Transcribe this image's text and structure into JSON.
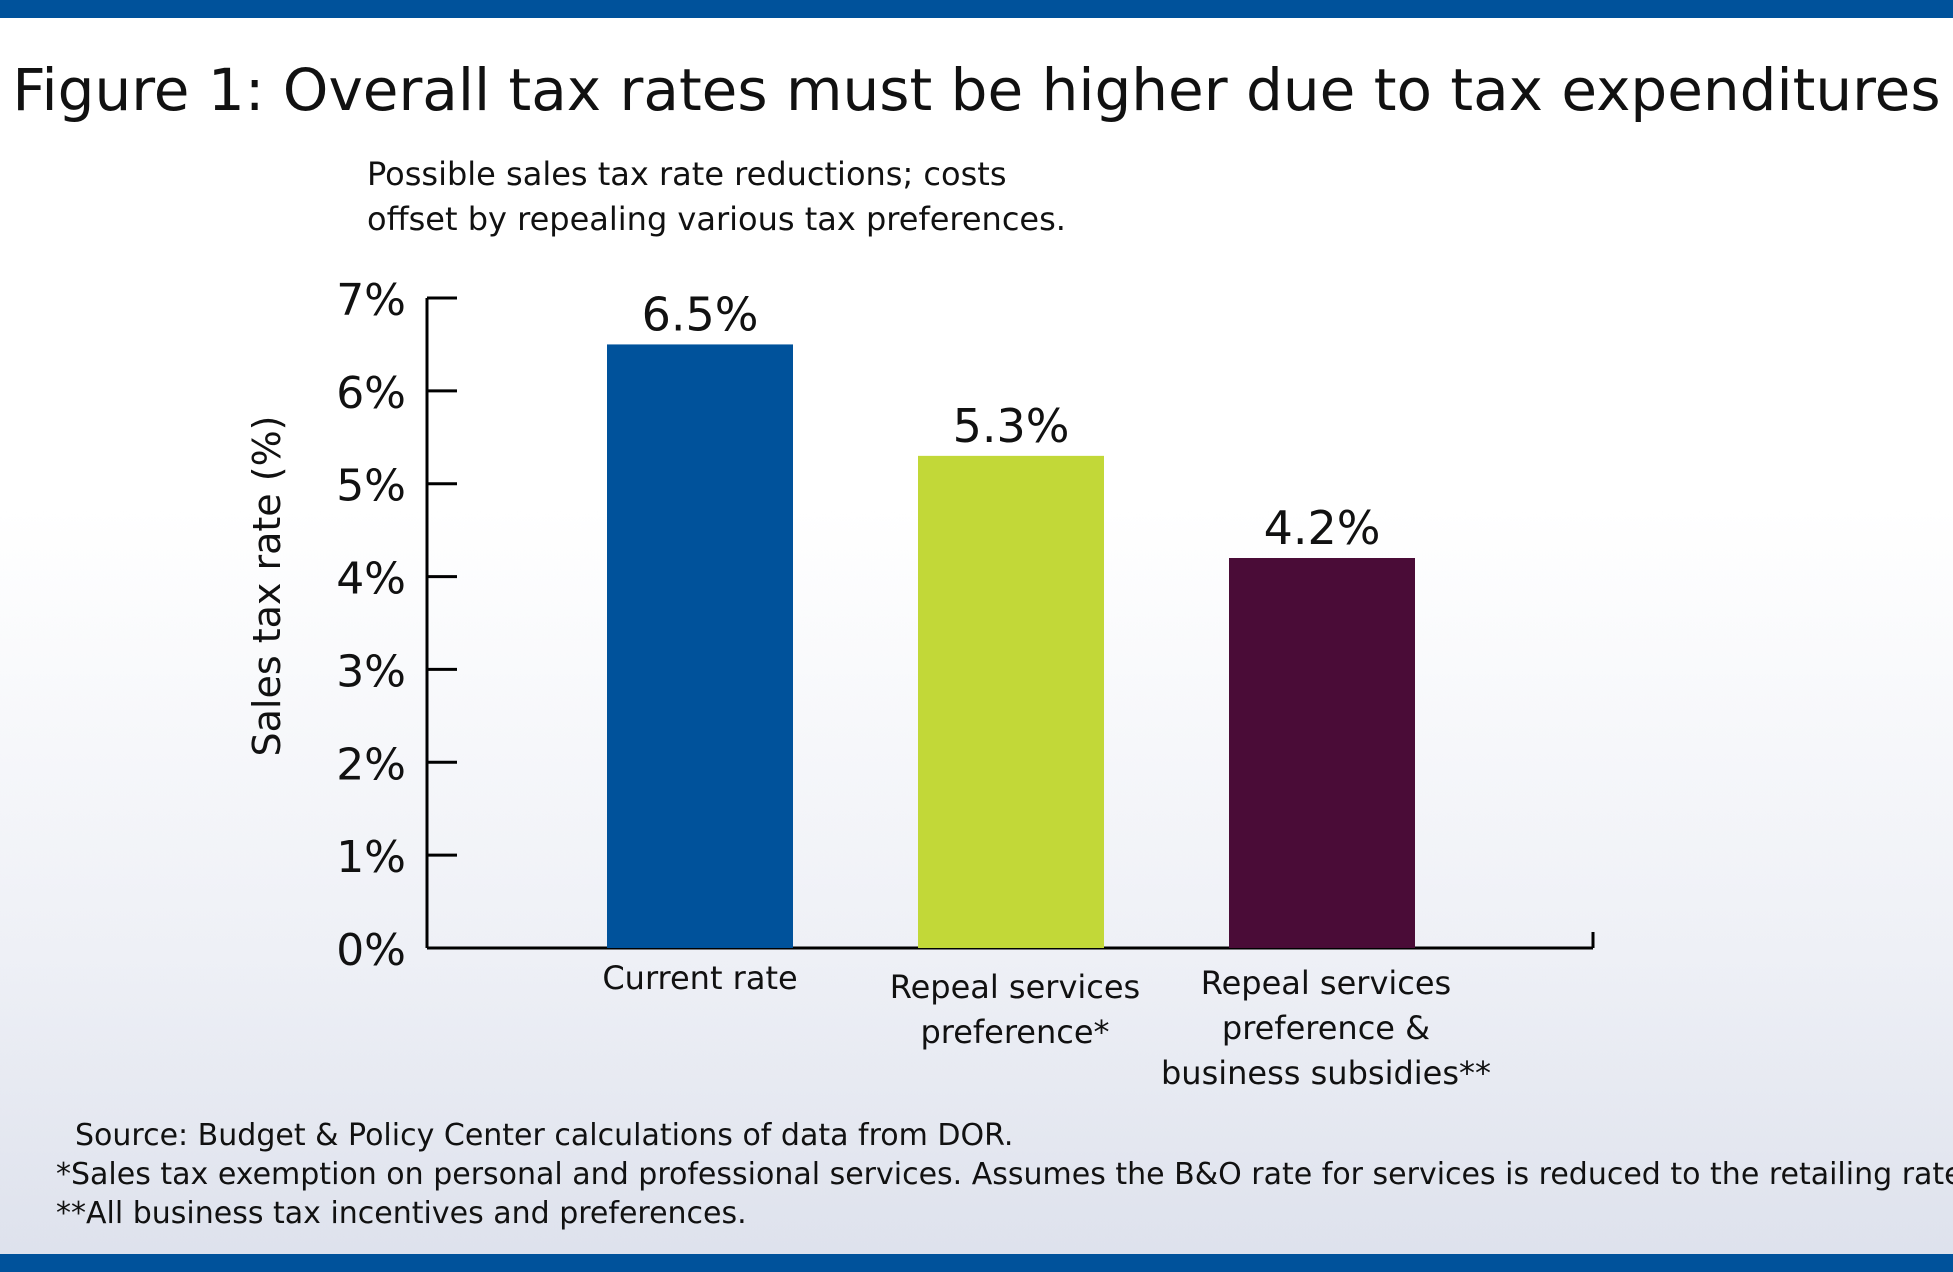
{
  "colors": {
    "accent_band": "#00529b",
    "bar_colors": [
      "#00529b",
      "#c2d838",
      "#4a0c37"
    ]
  },
  "title": "Figure 1:  Overall tax rates must be higher due to tax expenditures",
  "subtitle": "Possible sales tax rate reductions; costs\noffset by repealing various tax preferences.",
  "chart_data": {
    "type": "bar",
    "title": "Figure 1:  Overall tax rates must be higher due to tax expenditures",
    "subtitle": "Possible sales tax rate reductions; costs offset by repealing various tax preferences.",
    "ylabel": "Sales tax rate (%)",
    "xlabel": "",
    "ylim": [
      0,
      7
    ],
    "yticks": [
      "0%",
      "1%",
      "2%",
      "3%",
      "4%",
      "5%",
      "6%",
      "7%"
    ],
    "categories": [
      "Current rate",
      "Repeal services preference*",
      "Repeal services preference & business subsidies**"
    ],
    "category_lines": [
      [
        "Current rate"
      ],
      [
        "Repeal services",
        "preference*"
      ],
      [
        "Repeal services",
        "preference &",
        "business subsidies**"
      ]
    ],
    "values": [
      6.5,
      5.3,
      4.2
    ],
    "data_labels": [
      "6.5%",
      "5.3%",
      "4.2%"
    ],
    "grid": false,
    "legend": "none"
  },
  "notes": [
    "Source: Budget & Policy Center calculations of data from DOR.",
    "*Sales tax exemption on personal and professional services. Assumes the B&O rate for services is reduced to the retailing rate.",
    "**All business tax incentives and preferences."
  ]
}
